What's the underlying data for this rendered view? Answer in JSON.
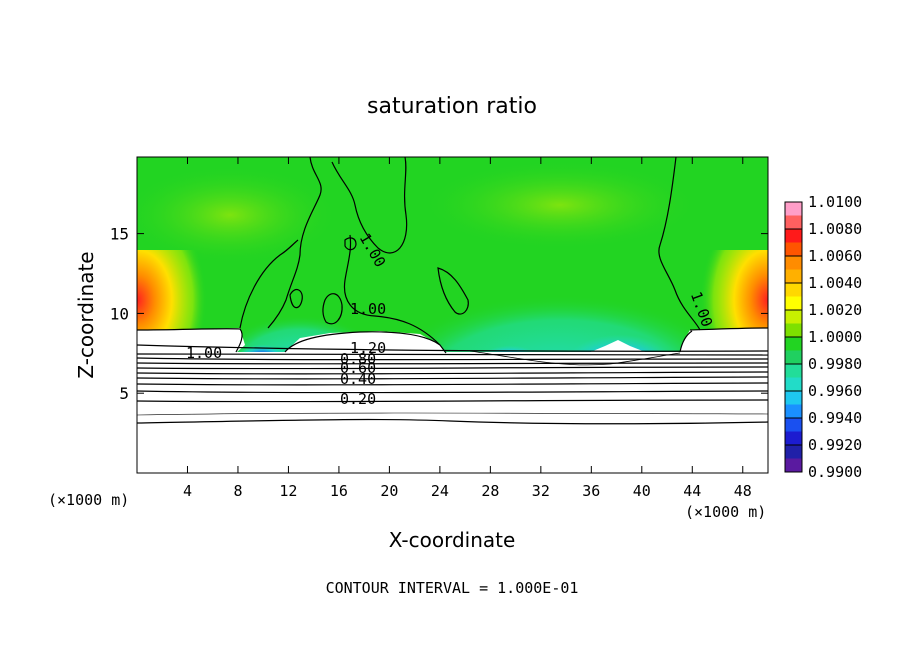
{
  "chart_data": {
    "type": "heatmap",
    "title": "saturation ratio",
    "xlabel": "X-coordinate",
    "ylabel": "Z-coordinate",
    "x_unit": "(×1000 m)",
    "xlim": [
      0,
      50
    ],
    "ylim": [
      0,
      19.8
    ],
    "x_ticks": [
      4,
      8,
      12,
      16,
      20,
      24,
      28,
      32,
      36,
      40,
      44,
      48
    ],
    "y_ticks": [
      5,
      10,
      15
    ],
    "colorbar": {
      "min": 0.99,
      "max": 1.01,
      "tick_labels": [
        "1.0100",
        "1.0080",
        "1.0060",
        "1.0040",
        "1.0020",
        "1.0000",
        "0.9980",
        "0.9960",
        "0.9940",
        "0.9920",
        "0.9900"
      ],
      "colors": [
        "#ff9ec8",
        "#ff6060",
        "#ff1a1a",
        "#ff5500",
        "#ff8c00",
        "#ffb000",
        "#ffd800",
        "#ffff00",
        "#c8f000",
        "#7ee000",
        "#22d422",
        "#20d060",
        "#22dd99",
        "#22dcc8",
        "#1ec8f0",
        "#1a90ff",
        "#1a50f0",
        "#1c1cd0",
        "#2020a8",
        "#5a1aa0"
      ]
    },
    "contour_interval_label": "CONTOUR INTERVAL = 1.000E-01",
    "contour_labels": [
      "1.00",
      "1.00",
      "1.00",
      "1.00",
      "1.20",
      "0.80",
      "0.60",
      "0.40",
      "0.20"
    ]
  }
}
